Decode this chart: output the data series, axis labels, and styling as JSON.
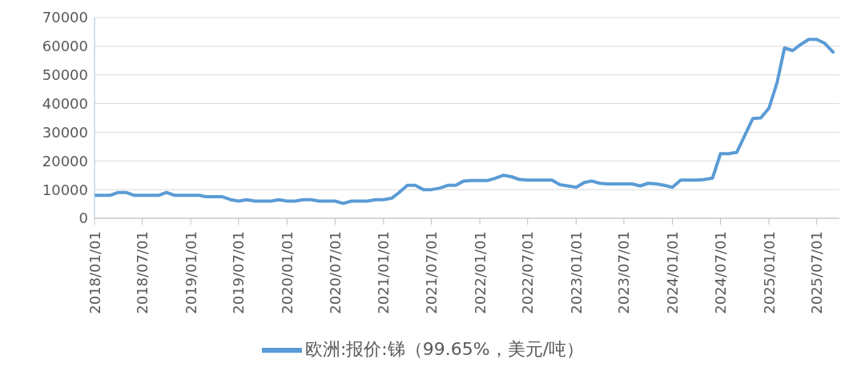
{
  "chart_data": {
    "type": "line",
    "xlim": [
      "2018-01-01",
      "2025-09-25"
    ],
    "xticks": [
      {
        "value": "2018-01-01",
        "label": "2018/01/01"
      },
      {
        "value": "2018-07-01",
        "label": "2018/07/01"
      },
      {
        "value": "2019-01-01",
        "label": "2019/01/01"
      },
      {
        "value": "2019-07-01",
        "label": "2019/07/01"
      },
      {
        "value": "2020-01-01",
        "label": "2020/01/01"
      },
      {
        "value": "2020-07-01",
        "label": "2020/07/01"
      },
      {
        "value": "2021-01-01",
        "label": "2021/01/01"
      },
      {
        "value": "2021-07-01",
        "label": "2021/07/01"
      },
      {
        "value": "2022-01-01",
        "label": "2022/01/01"
      },
      {
        "value": "2022-07-01",
        "label": "2022/07/01"
      },
      {
        "value": "2023-01-01",
        "label": "2023/01/01"
      },
      {
        "value": "2023-07-01",
        "label": "2023/07/01"
      },
      {
        "value": "2024-01-01",
        "label": "2024/01/01"
      },
      {
        "value": "2024-07-01",
        "label": "2024/07/01"
      },
      {
        "value": "2025-01-01",
        "label": "2025/01/01"
      },
      {
        "value": "2025-07-01",
        "label": "2025/07/01"
      }
    ],
    "ylim": [
      0,
      70000
    ],
    "yticks": [
      0,
      10000,
      20000,
      30000,
      40000,
      50000,
      60000,
      70000
    ],
    "grid": "y",
    "legend": "bottom",
    "marker": "none",
    "line_style": "solid",
    "x": [
      "2018-01",
      "2018-02",
      "2018-03",
      "2018-04",
      "2018-05",
      "2018-06",
      "2018-07",
      "2018-08",
      "2018-09",
      "2018-10",
      "2018-11",
      "2018-12",
      "2019-01",
      "2019-02",
      "2019-03",
      "2019-04",
      "2019-05",
      "2019-06",
      "2019-07",
      "2019-08",
      "2019-09",
      "2019-10",
      "2019-11",
      "2019-12",
      "2020-01",
      "2020-02",
      "2020-03",
      "2020-04",
      "2020-05",
      "2020-06",
      "2020-07",
      "2020-08",
      "2020-09",
      "2020-10",
      "2020-11",
      "2020-12",
      "2021-01",
      "2021-02",
      "2021-03",
      "2021-04",
      "2021-05",
      "2021-06",
      "2021-07",
      "2021-08",
      "2021-09",
      "2021-10",
      "2021-11",
      "2021-12",
      "2022-01",
      "2022-02",
      "2022-03",
      "2022-04",
      "2022-05",
      "2022-06",
      "2022-07",
      "2022-08",
      "2022-09",
      "2022-10",
      "2022-11",
      "2022-12",
      "2023-01",
      "2023-02",
      "2023-03",
      "2023-04",
      "2023-05",
      "2023-06",
      "2023-07",
      "2023-08",
      "2023-09",
      "2023-10",
      "2023-11",
      "2023-12",
      "2024-01",
      "2024-02",
      "2024-03",
      "2024-04",
      "2024-05",
      "2024-06",
      "2024-07",
      "2024-08",
      "2024-09",
      "2024-10",
      "2024-11",
      "2024-12",
      "2025-01",
      "2025-02",
      "2025-03",
      "2025-04",
      "2025-05",
      "2025-06",
      "2025-07",
      "2025-08",
      "2025-09"
    ],
    "series": [
      {
        "name": "欧洲:报价:锑（99.65%，美元/吨）",
        "color": "#5b9bd5",
        "values": [
          8000,
          8000,
          8000,
          9000,
          9000,
          8000,
          8000,
          8000,
          8000,
          9000,
          8000,
          8000,
          8000,
          8000,
          7500,
          7500,
          7500,
          6500,
          6000,
          6500,
          6000,
          6000,
          6000,
          6500,
          6000,
          6000,
          6500,
          6500,
          6000,
          6000,
          6000,
          5200,
          6000,
          6000,
          6000,
          6500,
          6500,
          7000,
          9000,
          11500,
          11500,
          10000,
          10000,
          10500,
          11500,
          11500,
          13000,
          13200,
          13200,
          13200,
          14000,
          15000,
          14500,
          13500,
          13300,
          13300,
          13300,
          13300,
          11700,
          11300,
          10800,
          12500,
          13000,
          12200,
          12000,
          12000,
          12000,
          12000,
          11300,
          12200,
          12000,
          11500,
          10800,
          13300,
          13300,
          13300,
          13500,
          14000,
          22500,
          22500,
          23000,
          28800,
          34800,
          35000,
          38400,
          47400,
          59400,
          58500,
          60600,
          62400,
          62400,
          61000,
          58000
        ]
      }
    ]
  }
}
